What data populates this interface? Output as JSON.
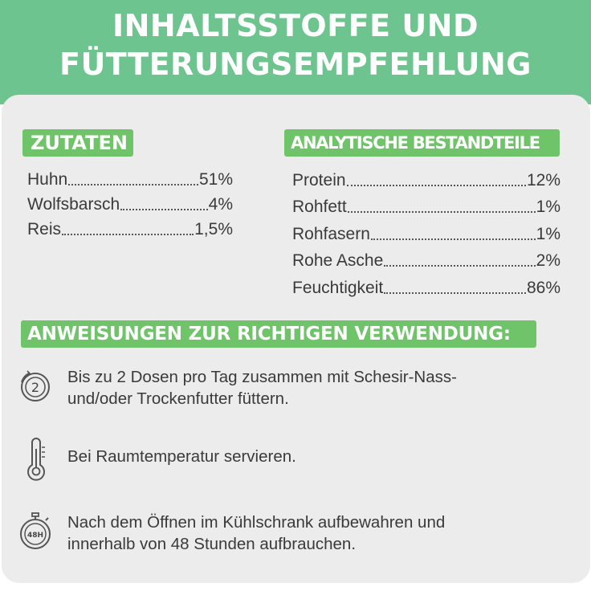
{
  "title": {
    "line1": "INHALTSSTOFFE UND",
    "line2": "FÜTTERUNGSEMPFEHLUNG"
  },
  "zutaten": {
    "heading": "ZUTATEN",
    "items": [
      {
        "name": "Huhn",
        "value": "51%"
      },
      {
        "name": "Wolfsbarsch",
        "value": "4%"
      },
      {
        "name": "Reis",
        "value": "1,5%"
      }
    ]
  },
  "analytik": {
    "heading": "ANALYTISCHE BESTANDTEILE",
    "items": [
      {
        "name": "Protein",
        "value": "12%"
      },
      {
        "name": "Rohfett",
        "value": "1%"
      },
      {
        "name": "Rohfasern",
        "value": "1%"
      },
      {
        "name": "Rohe Asche",
        "value": "2%"
      },
      {
        "name": "Feuchtigkeit",
        "value": "86%"
      }
    ]
  },
  "anweisungen": {
    "heading": "ANWEISUNGEN ZUR RICHTIGEN VERWENDUNG:",
    "items": [
      {
        "icon": "two-cans-per-day-icon",
        "icon_text": "2",
        "line1": "Bis zu 2 Dosen pro Tag zusammen mit Schesir-Nass-",
        "line2": "und/oder Trockenfutter füttern."
      },
      {
        "icon": "thermometer-icon",
        "line1": "Bei Raumtemperatur servieren.",
        "line2": ""
      },
      {
        "icon": "stopwatch-48h-icon",
        "icon_text": "48H",
        "line1": "Nach dem Öffnen im Kühlschrank aufbewahren und",
        "line2": "innerhalb von 48 Stunden aufbrauchen."
      }
    ]
  },
  "colors": {
    "banner": "#6ec48f",
    "tag": "#6fc46a",
    "card": "#ececec",
    "text": "#3a3a3a"
  }
}
